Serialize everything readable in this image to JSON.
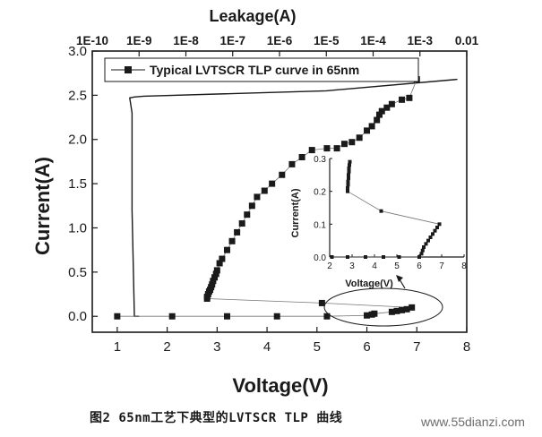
{
  "caption": "图2 65nm工艺下典型的LVTSCR TLP 曲线",
  "watermark": "www.55dianzi.com",
  "chart_data": [
    {
      "type": "scatter",
      "title": "",
      "xlabel": "Voltage(V)",
      "ylabel": "Current(A)",
      "top_xlabel": "Leakage(A)",
      "xlim": [
        0.5,
        8
      ],
      "ylim": [
        -0.18,
        3.0
      ],
      "top_xlim_log10": [
        -10,
        -2
      ],
      "x_ticks": [
        1,
        2,
        3,
        4,
        5,
        6,
        7,
        8
      ],
      "y_ticks": [
        0.0,
        0.5,
        1.0,
        1.5,
        2.0,
        2.5,
        3.0
      ],
      "top_ticks": [
        "1E-10",
        "1E-9",
        "1E-8",
        "1E-7",
        "1E-6",
        "1E-5",
        "1E-4",
        "1E-3",
        "0.01"
      ],
      "legend": {
        "position": "top",
        "entries": [
          "Typical LVTSCR TLP curve in 65nm"
        ]
      },
      "series": [
        {
          "name": "Typical LVTSCR TLP curve in 65nm",
          "marker": "square",
          "points": [
            [
              1.0,
              0.0
            ],
            [
              2.1,
              0.0
            ],
            [
              3.2,
              0.0
            ],
            [
              4.2,
              0.0
            ],
            [
              5.2,
              0.0
            ],
            [
              6.0,
              0.01
            ],
            [
              6.1,
              0.02
            ],
            [
              6.15,
              0.03
            ],
            [
              6.5,
              0.05
            ],
            [
              6.6,
              0.06
            ],
            [
              6.7,
              0.07
            ],
            [
              6.8,
              0.08
            ],
            [
              6.9,
              0.1
            ],
            [
              5.1,
              0.15
            ],
            [
              2.8,
              0.2
            ],
            [
              2.8,
              0.22
            ],
            [
              2.82,
              0.25
            ],
            [
              2.84,
              0.28
            ],
            [
              2.86,
              0.3
            ],
            [
              2.88,
              0.33
            ],
            [
              2.9,
              0.36
            ],
            [
              2.92,
              0.4
            ],
            [
              2.95,
              0.44
            ],
            [
              2.98,
              0.48
            ],
            [
              3.0,
              0.52
            ],
            [
              3.05,
              0.6
            ],
            [
              3.1,
              0.65
            ],
            [
              3.2,
              0.75
            ],
            [
              3.3,
              0.85
            ],
            [
              3.4,
              0.95
            ],
            [
              3.5,
              1.05
            ],
            [
              3.6,
              1.15
            ],
            [
              3.7,
              1.25
            ],
            [
              3.8,
              1.35
            ],
            [
              3.95,
              1.42
            ],
            [
              4.1,
              1.5
            ],
            [
              4.3,
              1.6
            ],
            [
              4.5,
              1.72
            ],
            [
              4.7,
              1.8
            ],
            [
              4.9,
              1.88
            ],
            [
              5.2,
              1.9
            ],
            [
              5.4,
              1.9
            ],
            [
              5.55,
              1.95
            ],
            [
              5.7,
              1.97
            ],
            [
              5.85,
              2.02
            ],
            [
              6.0,
              2.1
            ],
            [
              6.1,
              2.15
            ],
            [
              6.2,
              2.22
            ],
            [
              6.25,
              2.28
            ],
            [
              6.3,
              2.32
            ],
            [
              6.4,
              2.36
            ],
            [
              6.5,
              2.4
            ],
            [
              6.7,
              2.45
            ],
            [
              6.85,
              2.47
            ],
            [
              7.0,
              2.68
            ]
          ]
        },
        {
          "name": "",
          "type": "line",
          "x_log10": [
            -9.0,
            -9.1,
            -9.15,
            -9.15,
            -9.2,
            -9.1,
            -8.9,
            -5.0,
            -2.2
          ],
          "y": [
            0.0,
            0.0,
            1.2,
            2.3,
            2.47,
            2.48,
            2.49,
            2.55,
            2.68
          ]
        }
      ]
    },
    {
      "type": "scatter",
      "title": "",
      "xlabel": "Voltage(V)",
      "ylabel": "Current(A)",
      "xlim": [
        2,
        8
      ],
      "ylim": [
        0.0,
        0.3
      ],
      "x_ticks": [
        2,
        3,
        4,
        5,
        6,
        7,
        8
      ],
      "y_ticks": [
        0.0,
        0.1,
        0.2,
        0.3
      ],
      "series": [
        {
          "name": "",
          "marker": "square",
          "points": [
            [
              2.1,
              0.0
            ],
            [
              2.8,
              0.0
            ],
            [
              3.6,
              0.0
            ],
            [
              4.4,
              0.0
            ],
            [
              5.1,
              0.0
            ],
            [
              6.0,
              0.0
            ],
            [
              6.1,
              0.01
            ],
            [
              6.15,
              0.02
            ],
            [
              6.2,
              0.03
            ],
            [
              6.3,
              0.04
            ],
            [
              6.4,
              0.05
            ],
            [
              6.5,
              0.06
            ],
            [
              6.6,
              0.07
            ],
            [
              6.7,
              0.08
            ],
            [
              6.8,
              0.09
            ],
            [
              6.9,
              0.1
            ],
            [
              4.3,
              0.14
            ],
            [
              2.8,
              0.2
            ],
            [
              2.8,
              0.21
            ],
            [
              2.82,
              0.22
            ],
            [
              2.82,
              0.23
            ],
            [
              2.84,
              0.24
            ],
            [
              2.84,
              0.25
            ],
            [
              2.86,
              0.26
            ],
            [
              2.86,
              0.27
            ],
            [
              2.88,
              0.28
            ],
            [
              2.9,
              0.29
            ]
          ]
        }
      ]
    }
  ]
}
